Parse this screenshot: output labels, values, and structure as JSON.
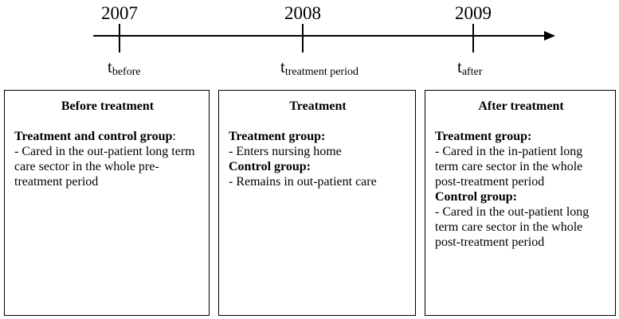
{
  "timeline": {
    "years": [
      "2007",
      "2008",
      "2009"
    ],
    "time_labels": [
      {
        "main": "t",
        "sub": "before"
      },
      {
        "main": "t",
        "sub": "treatment period"
      },
      {
        "main": "t",
        "sub": "after"
      }
    ]
  },
  "boxes": [
    {
      "title": "Before treatment",
      "sections": [
        {
          "heading": "Treatment and control group",
          "suffix": ":",
          "body": "- Cared in the out-patient long term care sector in the whole pre-treatment period"
        }
      ]
    },
    {
      "title": "Treatment",
      "sections": [
        {
          "heading": "Treatment group:",
          "body": "- Enters nursing home"
        },
        {
          "heading": "Control group:",
          "body": "- Remains in out-patient care"
        }
      ]
    },
    {
      "title": "After treatment",
      "sections": [
        {
          "heading": "Treatment group:",
          "body": "- Cared in the in-patient long term care sector in the whole post-treatment period"
        },
        {
          "heading": "Control group:",
          "body": "- Cared in the out-patient long term care sector in the whole post-treatment period"
        }
      ]
    }
  ]
}
